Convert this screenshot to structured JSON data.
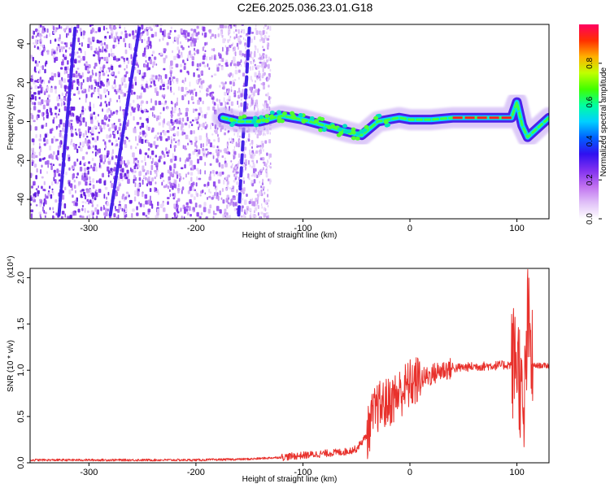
{
  "title": "C2E6.2025.036.23.01.G18",
  "chart_data": [
    {
      "type": "heatmap",
      "xlabel": "Height of straight line (km)",
      "ylabel": "Frequency (Hz)",
      "xlim": [
        -355,
        130
      ],
      "ylim": [
        -50,
        50
      ],
      "xticks": [
        -300,
        -200,
        -100,
        0,
        100
      ],
      "yticks": [
        -40,
        -20,
        0,
        20,
        40
      ],
      "colorbar": {
        "label": "Normalized spectral amplitude",
        "range": [
          0,
          1
        ],
        "ticks": [
          0.0,
          0.2,
          0.4,
          0.6,
          0.8
        ],
        "colors": [
          "#ffffff",
          "#e0c0f8",
          "#c070f0",
          "#8030f0",
          "#3010f0",
          "#0060ff",
          "#00d0ff",
          "#00ffa0",
          "#40ff00",
          "#c0ff00",
          "#ffb000",
          "#ff3000",
          "#ff0060"
        ]
      },
      "features": {
        "noise_region_x": [
          -355,
          -130
        ],
        "diagonal_streaks": [
          {
            "x": [
              -328,
              -313
            ],
            "y": [
              -48,
              48
            ]
          },
          {
            "x": [
              -280,
              -253
            ],
            "y": [
              -48,
              48
            ]
          },
          {
            "x": [
              -160,
              -150
            ],
            "y": [
              -48,
              48
            ]
          }
        ],
        "signal_trace": {
          "x": [
            -175,
            -160,
            -140,
            -120,
            -100,
            -80,
            -60,
            -45,
            -30,
            -10,
            0,
            20,
            40,
            60,
            80,
            95,
            100,
            105,
            110,
            130
          ],
          "y": [
            2,
            0,
            0,
            3,
            1,
            -2,
            -5,
            -7,
            0,
            2,
            1,
            1,
            2,
            2,
            2,
            2,
            10,
            -2,
            -8,
            2
          ]
        }
      }
    },
    {
      "type": "line",
      "xlabel": "Height of straight line (km)",
      "ylabel": "SNR (10 * v/v)",
      "y_multiplier": "(x10⁴)",
      "xlim": [
        -355,
        130
      ],
      "ylim": [
        0,
        2.1
      ],
      "xticks": [
        -300,
        -200,
        -100,
        0,
        100
      ],
      "yticks": [
        0.0,
        0.5,
        1.0,
        1.5,
        2.0
      ],
      "color": "#e8312c",
      "series": [
        {
          "x": [
            -355,
            -300,
            -250,
            -200,
            -150,
            -120,
            -100,
            -80,
            -60,
            -50,
            -40,
            -35,
            -30,
            -20,
            -10,
            0,
            10,
            20,
            30,
            40,
            60,
            80,
            95,
            100,
            103,
            106,
            110,
            115,
            130
          ],
          "values": [
            0.03,
            0.03,
            0.03,
            0.03,
            0.04,
            0.06,
            0.08,
            0.1,
            0.12,
            0.15,
            0.3,
            0.5,
            0.6,
            0.65,
            0.75,
            0.85,
            0.9,
            0.95,
            1.0,
            1.02,
            1.04,
            1.05,
            1.06,
            1.15,
            0.9,
            0.3,
            1.5,
            1.05,
            1.05
          ]
        }
      ]
    }
  ]
}
